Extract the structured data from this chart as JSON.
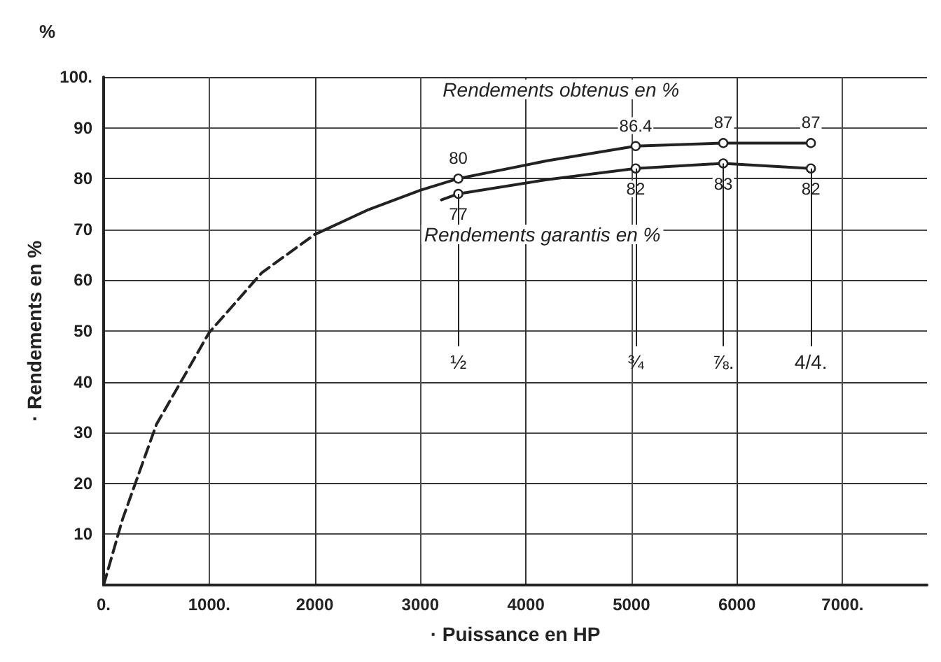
{
  "chart_data": {
    "type": "line",
    "xlabel": "· Puissance en HP",
    "ylabel": "· Rendements en %",
    "annotations": [
      "%",
      {
        "text": "½",
        "x": 3360,
        "y": 77
      },
      {
        "text": "¾",
        "x": 5040,
        "y": 82
      },
      {
        "text": "⅞.",
        "x": 5870,
        "y": 83
      },
      {
        "text": "4/4.",
        "x": 6700,
        "y": 82
      }
    ],
    "series": [
      {
        "color": "#222222",
        "line_style": "dashed",
        "marker": "none",
        "x": [
          0,
          180,
          500,
          1000,
          1500,
          2000
        ],
        "values": [
          0,
          13,
          31.6,
          49.7,
          61.5,
          69
        ]
      },
      {
        "name": "Rendements obtenus en %",
        "color": "#222222",
        "line_style": "solid",
        "marker": "circle",
        "x": [
          2000,
          2500,
          3000,
          3360,
          4200,
          5040,
          5870,
          6700
        ],
        "values": [
          69,
          73.8,
          77.7,
          80,
          83.5,
          86.4,
          87,
          87
        ],
        "value_labels": [
          null,
          null,
          null,
          "80",
          null,
          "86.4",
          "87",
          "87"
        ]
      },
      {
        "name": "Rendements garantis en %",
        "color": "#222222",
        "line_style": "solid",
        "marker": "circle",
        "x": [
          3200,
          3360,
          4200,
          5040,
          5870,
          6700
        ],
        "values": [
          75.8,
          77,
          79.8,
          82,
          83,
          82
        ],
        "value_labels": [
          null,
          "77",
          null,
          "82",
          "83",
          "82"
        ]
      }
    ],
    "xlim": [
      0,
      7800
    ],
    "xticks": [
      {
        "value": 0,
        "label": "0."
      },
      {
        "value": 1000,
        "label": "1000."
      },
      2000,
      3000,
      4000,
      5000,
      6000,
      {
        "value": 7000,
        "label": "7000."
      }
    ],
    "ylim": [
      0,
      100
    ],
    "yticks": [
      10,
      20,
      30,
      40,
      50,
      60,
      70,
      80,
      90,
      {
        "value": 100,
        "label": "100."
      }
    ],
    "grid": true,
    "legend": false
  }
}
